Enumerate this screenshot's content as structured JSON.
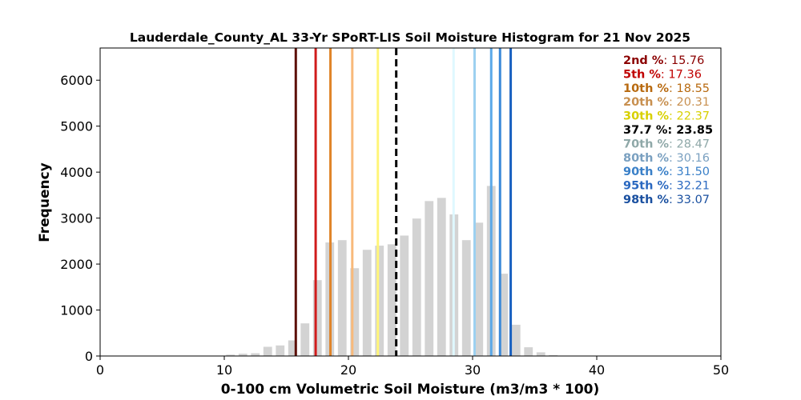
{
  "chart_data": {
    "type": "bar",
    "title": "Lauderdale_County_AL 33-Yr SPoRT-LIS Soil Moisture Histogram for 21 Nov 2025",
    "xlabel": "0-100 cm Volumetric Soil Moisture (m3/m3 * 100)",
    "ylabel": "Frequency",
    "xlim": [
      0,
      50
    ],
    "ylim": [
      0,
      6700
    ],
    "xticks": [
      "0",
      "10",
      "20",
      "30",
      "40",
      "50"
    ],
    "xtick_values": [
      0,
      10,
      20,
      30,
      40,
      50
    ],
    "yticks": [
      "0",
      "1000",
      "2000",
      "3000",
      "4000",
      "5000",
      "6000"
    ],
    "ytick_values": [
      0,
      1000,
      2000,
      3000,
      4000,
      5000,
      6000
    ],
    "bar_color": "#d3d3d3",
    "bins": [
      {
        "x": 10.5,
        "value": 30
      },
      {
        "x": 11.5,
        "value": 50
      },
      {
        "x": 12.5,
        "value": 60
      },
      {
        "x": 13.5,
        "value": 200
      },
      {
        "x": 14.5,
        "value": 230
      },
      {
        "x": 15.5,
        "value": 340
      },
      {
        "x": 16.5,
        "value": 710
      },
      {
        "x": 17.5,
        "value": 1650
      },
      {
        "x": 18.5,
        "value": 2470
      },
      {
        "x": 19.5,
        "value": 2520
      },
      {
        "x": 20.5,
        "value": 1910
      },
      {
        "x": 21.5,
        "value": 2310
      },
      {
        "x": 22.5,
        "value": 2400
      },
      {
        "x": 23.5,
        "value": 2430
      },
      {
        "x": 24.5,
        "value": 2620
      },
      {
        "x": 25.5,
        "value": 2990
      },
      {
        "x": 26.5,
        "value": 3370
      },
      {
        "x": 27.5,
        "value": 3440
      },
      {
        "x": 28.5,
        "value": 3080
      },
      {
        "x": 29.5,
        "value": 2520
      },
      {
        "x": 30.5,
        "value": 2900
      },
      {
        "x": 31.5,
        "value": 3700
      },
      {
        "x": 32.5,
        "value": 1790
      },
      {
        "x": 33.5,
        "value": 680
      },
      {
        "x": 34.5,
        "value": 190
      },
      {
        "x": 35.5,
        "value": 80
      },
      {
        "x": 36.5,
        "value": 20
      }
    ],
    "percentiles": [
      {
        "label": "2nd %",
        "value": 15.76,
        "color": "#5c0f06",
        "dashed": false
      },
      {
        "label": "5th %",
        "value": 17.36,
        "color": "#d01c1c",
        "dashed": false
      },
      {
        "label": "10th %",
        "value": 18.55,
        "color": "#e0852a",
        "dashed": false
      },
      {
        "label": "20th %",
        "value": 20.31,
        "color": "#f8b97a",
        "dashed": false
      },
      {
        "label": "30th %",
        "value": 22.37,
        "color": "#fff57a",
        "dashed": false
      },
      {
        "label": "37.7 %",
        "value": 23.85,
        "color": "#000000",
        "dashed": true
      },
      {
        "label": "70th %",
        "value": 28.47,
        "color": "#dff8ff",
        "dashed": false
      },
      {
        "label": "80th %",
        "value": 30.16,
        "color": "#9cd0f0",
        "dashed": false
      },
      {
        "label": "90th %",
        "value": 31.5,
        "color": "#5aa8e8",
        "dashed": false
      },
      {
        "label": "95th %",
        "value": 32.21,
        "color": "#3a88d8",
        "dashed": false
      },
      {
        "label": "98th %",
        "value": 33.07,
        "color": "#1860c0",
        "dashed": false
      }
    ],
    "legend": {
      "placement": "top-right",
      "entries": [
        {
          "label": "2nd %",
          "value": "15.76",
          "color": "#8b0000"
        },
        {
          "label": "5th %",
          "value": "17.36",
          "color": "#c00000"
        },
        {
          "label": "10th %",
          "value": "18.55",
          "color": "#b86a10"
        },
        {
          "label": "20th %",
          "value": "20.31",
          "color": "#c89050"
        },
        {
          "label": "30th %",
          "value": "22.37",
          "color": "#d8d000"
        },
        {
          "label": "37.7 %",
          "value": "23.85",
          "color": "#000000"
        },
        {
          "label": "70th %",
          "value": "28.47",
          "color": "#8fa8a8"
        },
        {
          "label": "80th %",
          "value": "30.16",
          "color": "#7aa0c0"
        },
        {
          "label": "90th %",
          "value": "31.50",
          "color": "#3a80c8"
        },
        {
          "label": "95th %",
          "value": "32.21",
          "color": "#2a68c0"
        },
        {
          "label": "98th %",
          "value": "33.07",
          "color": "#1a50a0"
        }
      ]
    }
  }
}
